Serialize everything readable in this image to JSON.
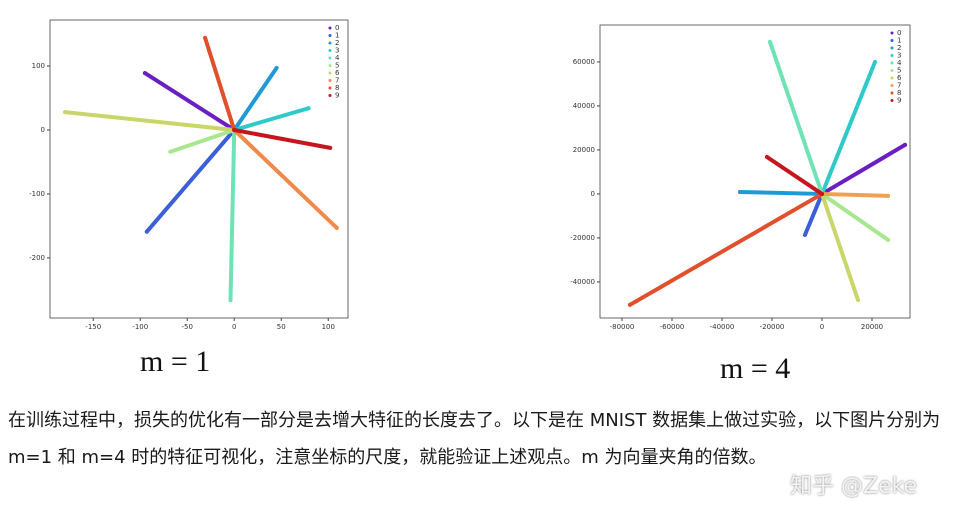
{
  "chart_data": [
    {
      "type": "scatter",
      "xlim": [
        -196,
        121
      ],
      "ylim": [
        -294,
        172
      ],
      "xticks": [
        -150,
        -100,
        -50,
        0,
        50,
        100
      ],
      "yticks": [
        100,
        0,
        -100,
        -200
      ],
      "series": [
        {
          "name": "0",
          "color": "#6a1fc2",
          "x": [
            0,
            -95
          ],
          "y": [
            0,
            89
          ]
        },
        {
          "name": "1",
          "color": "#3a5fd9",
          "x": [
            0,
            -93
          ],
          "y": [
            0,
            -159
          ]
        },
        {
          "name": "2",
          "color": "#1f9ad6",
          "x": [
            0,
            45
          ],
          "y": [
            0,
            97
          ]
        },
        {
          "name": "3",
          "color": "#2fc9c9",
          "x": [
            0,
            79
          ],
          "y": [
            0,
            34
          ]
        },
        {
          "name": "4",
          "color": "#6fe3b5",
          "x": [
            0,
            -4
          ],
          "y": [
            0,
            -266
          ]
        },
        {
          "name": "5",
          "color": "#a7e88f",
          "x": [
            0,
            -68
          ],
          "y": [
            0,
            -34
          ]
        },
        {
          "name": "6",
          "color": "#c9d66a",
          "x": [
            0,
            -180
          ],
          "y": [
            0,
            28
          ]
        },
        {
          "name": "7",
          "color": "#f08a4b",
          "x": [
            0,
            109
          ],
          "y": [
            0,
            -153
          ]
        },
        {
          "name": "8",
          "color": "#e0502c",
          "x": [
            0,
            -31
          ],
          "y": [
            0,
            144
          ]
        },
        {
          "name": "9",
          "color": "#c4161c",
          "x": [
            0,
            102
          ],
          "y": [
            0,
            -28
          ]
        }
      ]
    },
    {
      "type": "scatter",
      "xlim": [
        -88800,
        35200
      ],
      "ylim": [
        -56400,
        76800
      ],
      "xticks": [
        -80000,
        -60000,
        -40000,
        -20000,
        0,
        20000
      ],
      "yticks": [
        60000,
        40000,
        20000,
        0,
        -20000,
        -40000
      ],
      "series": [
        {
          "name": "0",
          "color": "#6a1fc2",
          "x": [
            0,
            33200
          ],
          "y": [
            0,
            22300
          ]
        },
        {
          "name": "1",
          "color": "#3a5fd9",
          "x": [
            0,
            -6800
          ],
          "y": [
            0,
            -18600
          ]
        },
        {
          "name": "2",
          "color": "#1f9ad6",
          "x": [
            0,
            -32800
          ],
          "y": [
            0,
            900
          ]
        },
        {
          "name": "3",
          "color": "#2fc9c9",
          "x": [
            0,
            21200
          ],
          "y": [
            0,
            60000
          ]
        },
        {
          "name": "4",
          "color": "#6fe3b5",
          "x": [
            0,
            -20800
          ],
          "y": [
            0,
            69100
          ]
        },
        {
          "name": "5",
          "color": "#a7e88f",
          "x": [
            0,
            26400
          ],
          "y": [
            0,
            -20900
          ]
        },
        {
          "name": "6",
          "color": "#c9d66a",
          "x": [
            0,
            14400
          ],
          "y": [
            0,
            -48200
          ]
        },
        {
          "name": "7",
          "color": "#f0a050",
          "x": [
            0,
            26400
          ],
          "y": [
            0,
            -900
          ]
        },
        {
          "name": "8",
          "color": "#e0502c",
          "x": [
            0,
            -76800
          ],
          "y": [
            0,
            -50400
          ]
        },
        {
          "name": "9",
          "color": "#c4161c",
          "x": [
            0,
            -22000
          ],
          "y": [
            0,
            16800
          ]
        }
      ]
    }
  ],
  "captions": [
    "m = 1",
    "m = 4"
  ],
  "paragraph": "在训练过程中，损失的优化有一部分是去增大特征的长度去了。以下是在 MNIST 数据集上做过实验，以下图片分别为 m=1 和 m=4 时的特征可视化，注意坐标的尺度，就能验证上述观点。m 为向量夹角的倍数。",
  "watermark": "知乎 @Zeke"
}
